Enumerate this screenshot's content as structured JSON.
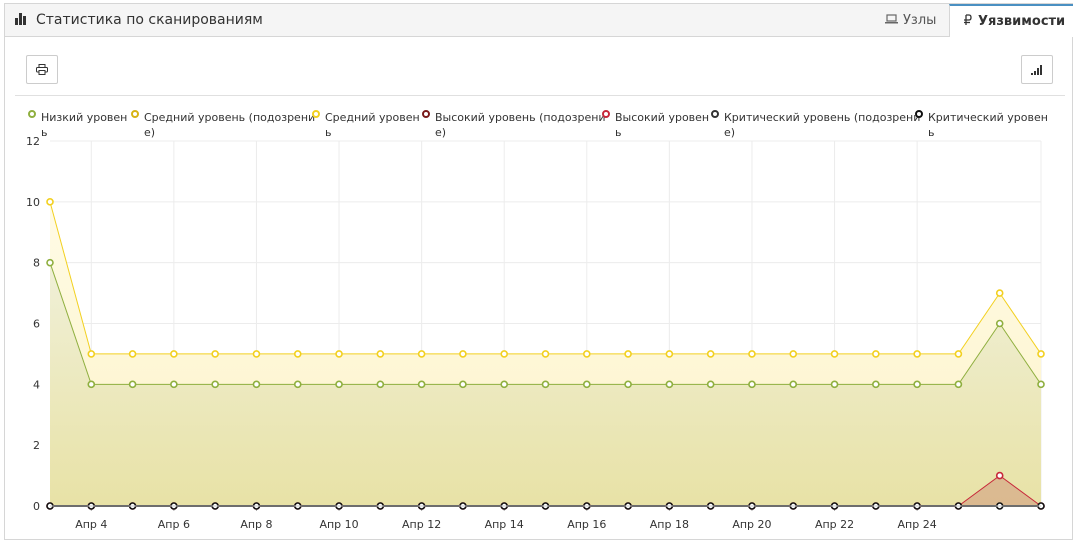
{
  "header": {
    "title": "Статистика по сканированиям",
    "tabs": [
      {
        "label": "Узлы",
        "icon": "laptop-icon",
        "active": false
      },
      {
        "label": "Уязвимости",
        "icon": "bug-icon",
        "active": true
      }
    ]
  },
  "toolbar": {
    "print_icon": "print-icon",
    "chart_type_icon": "signal-bars-icon"
  },
  "chart_data": {
    "type": "area",
    "legend": [
      {
        "line1": "Низкий  уровен",
        "line2": "ь",
        "color": "#8faf3f"
      },
      {
        "line1": "Средний уровень (подозрени",
        "line2": "е)",
        "color": "#d7b315"
      },
      {
        "line1": "Средний  уровен",
        "line2": "ь",
        "color": "#f2d020"
      },
      {
        "line1": "Высокий уровень (подозрени",
        "line2": "е)",
        "color": "#7a1a1a"
      },
      {
        "line1": "Высокий  уровен",
        "line2": "ь",
        "color": "#c7283a"
      },
      {
        "line1": "Критический уровень (подозрени",
        "line2": "е)",
        "color": "#333333"
      },
      {
        "line1": "Критический  уровен",
        "line2": "ь",
        "color": "#111111"
      }
    ],
    "y_ticks": [
      "0",
      "2",
      "4",
      "6",
      "8",
      "10",
      "12"
    ],
    "ylim": [
      0,
      12
    ],
    "x_tick_labels": [
      "Апр 4",
      "Апр 6",
      "Апр 8",
      "Апр 10",
      "Апр 12",
      "Апр 14",
      "Апр 16",
      "Апр 18",
      "Апр 20",
      "Апр 22",
      "Апр 24"
    ],
    "x_start_day": 3,
    "series": [
      {
        "key": "medium",
        "color": "#f2d020",
        "fill": "#fdf7d9",
        "values": [
          10,
          5,
          5,
          5,
          5,
          5,
          5,
          5,
          5,
          5,
          5,
          5,
          5,
          5,
          5,
          5,
          5,
          5,
          5,
          5,
          5,
          5,
          5,
          7,
          5
        ]
      },
      {
        "key": "low",
        "color": "#8faf3f",
        "fill": "#ece7b8",
        "values": [
          8,
          4,
          4,
          4,
          4,
          4,
          4,
          4,
          4,
          4,
          4,
          4,
          4,
          4,
          4,
          4,
          4,
          4,
          4,
          4,
          4,
          4,
          4,
          6,
          4
        ]
      },
      {
        "key": "high",
        "color": "#c7283a",
        "fill": "#d9b58e",
        "values": [
          0,
          0,
          0,
          0,
          0,
          0,
          0,
          0,
          0,
          0,
          0,
          0,
          0,
          0,
          0,
          0,
          0,
          0,
          0,
          0,
          0,
          0,
          0,
          1,
          0
        ]
      },
      {
        "key": "critical",
        "color": "#111111",
        "fill": "none",
        "values": [
          0,
          0,
          0,
          0,
          0,
          0,
          0,
          0,
          0,
          0,
          0,
          0,
          0,
          0,
          0,
          0,
          0,
          0,
          0,
          0,
          0,
          0,
          0,
          0,
          0
        ]
      }
    ]
  }
}
